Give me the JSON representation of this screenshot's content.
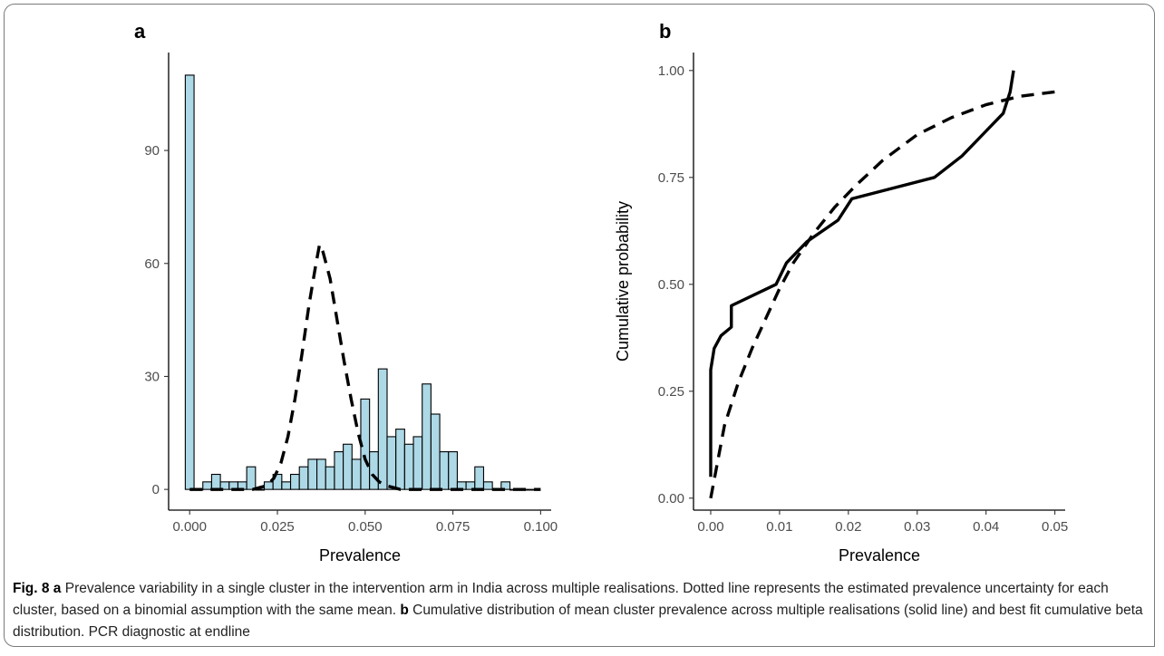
{
  "chart_data": [
    {
      "type": "bar",
      "panel_label": "a",
      "xlabel": "Prevalence",
      "ylabel": "",
      "xlim": [
        -0.006,
        0.103
      ],
      "ylim": [
        -5.5,
        116
      ],
      "x_ticks": [
        "0.000",
        "0.025",
        "0.050",
        "0.075",
        "0.100"
      ],
      "y_ticks": [
        "0",
        "30",
        "60",
        "90"
      ],
      "bar_width": 0.0025,
      "bar_color": "#add8e6",
      "x": [
        0.0,
        0.0025,
        0.005,
        0.0075,
        0.01,
        0.0125,
        0.015,
        0.0175,
        0.02,
        0.0225,
        0.025,
        0.0275,
        0.03,
        0.0325,
        0.035,
        0.0375,
        0.04,
        0.0425,
        0.045,
        0.0475,
        0.05,
        0.0525,
        0.055,
        0.0575,
        0.06,
        0.0625,
        0.065,
        0.0675,
        0.07,
        0.0725,
        0.075,
        0.0775,
        0.08,
        0.0825,
        0.085,
        0.0875,
        0.09,
        0.0925,
        0.095,
        0.0975
      ],
      "values": [
        110,
        0,
        2,
        4,
        2,
        2,
        2,
        6,
        0,
        2,
        4,
        2,
        4,
        6,
        8,
        8,
        6,
        10,
        12,
        8,
        24,
        10,
        32,
        14,
        16,
        12,
        14,
        28,
        20,
        10,
        10,
        2,
        2,
        6,
        2,
        0,
        2,
        0,
        0,
        0
      ],
      "series": [
        {
          "style": "dashed",
          "x": [
            0.0,
            0.005,
            0.01,
            0.015,
            0.018,
            0.02,
            0.022,
            0.024,
            0.026,
            0.028,
            0.03,
            0.032,
            0.034,
            0.036,
            0.037,
            0.038,
            0.04,
            0.042,
            0.044,
            0.046,
            0.048,
            0.05,
            0.052,
            0.054,
            0.056,
            0.058,
            0.06,
            0.065,
            0.07,
            0.08,
            0.09,
            0.1
          ],
          "y": [
            0,
            0,
            0,
            0,
            0,
            0.5,
            1,
            3,
            7,
            14,
            24,
            36,
            49,
            60,
            65,
            63,
            56,
            45,
            34,
            24,
            15,
            8,
            4,
            2,
            1,
            0.5,
            0,
            0,
            0,
            0,
            0,
            0
          ]
        }
      ]
    },
    {
      "type": "line",
      "panel_label": "b",
      "xlabel": "Prevalence",
      "ylabel": "Cumulative probability",
      "xlim": [
        -0.0025,
        0.0515
      ],
      "ylim": [
        -0.028,
        1.042
      ],
      "x_ticks": [
        "0.00",
        "0.01",
        "0.02",
        "0.03",
        "0.04",
        "0.05"
      ],
      "y_ticks": [
        "0.00",
        "0.25",
        "0.50",
        "0.75",
        "1.00"
      ],
      "series": [
        {
          "style": "solid",
          "x": [
            0.0,
            0.0,
            0.0,
            0.0005,
            0.0015,
            0.003,
            0.003,
            0.0095,
            0.011,
            0.014,
            0.0185,
            0.0205,
            0.0325,
            0.0365,
            0.0395,
            0.0425,
            0.0435,
            0.044
          ],
          "y": [
            0.05,
            0.25,
            0.3,
            0.35,
            0.38,
            0.4,
            0.45,
            0.5,
            0.55,
            0.6,
            0.65,
            0.7,
            0.75,
            0.8,
            0.85,
            0.9,
            0.95,
            1.0
          ]
        },
        {
          "style": "dashed",
          "x": [
            0.0,
            0.002,
            0.004,
            0.006,
            0.008,
            0.01,
            0.012,
            0.015,
            0.018,
            0.021,
            0.025,
            0.03,
            0.035,
            0.04,
            0.045,
            0.05
          ],
          "y": [
            0.0,
            0.17,
            0.27,
            0.35,
            0.42,
            0.49,
            0.55,
            0.62,
            0.68,
            0.73,
            0.79,
            0.85,
            0.89,
            0.92,
            0.94,
            0.95
          ]
        }
      ]
    }
  ],
  "caption": {
    "fig_label": "Fig. 8",
    "a_label": "a",
    "a_text": " Prevalence variability in a single cluster in the intervention arm in India across multiple realisations. Dotted line represents the estimated prevalence uncertainty for each cluster, based on a binomial assumption with the same mean. ",
    "b_label": "b",
    "b_text": " Cumulative distribution of mean cluster prevalence across multiple realisations (solid line) and best fit cumulative beta distribution. PCR diagnostic at endline"
  }
}
